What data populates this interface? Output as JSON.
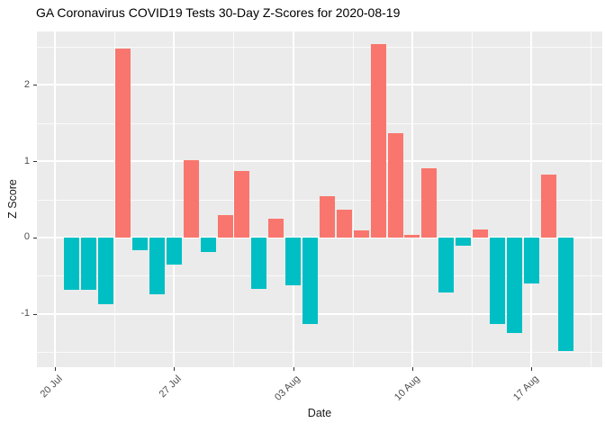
{
  "chart_data": {
    "type": "bar",
    "title": "GA Coronavirus COVID19 Tests 30-Day Z-Scores for 2020-08-19",
    "xlabel": "Date",
    "ylabel": "Z Score",
    "ylim": [
      -1.7,
      2.7
    ],
    "grid": true,
    "legend": false,
    "x_ticks": [
      {
        "label": "20 Jul",
        "date": "2020-07-20"
      },
      {
        "label": "27 Jul",
        "date": "2020-07-27"
      },
      {
        "label": "03 Aug",
        "date": "2020-08-03"
      },
      {
        "label": "10 Aug",
        "date": "2020-08-10"
      },
      {
        "label": "17 Aug",
        "date": "2020-08-17"
      }
    ],
    "y_ticks": [
      "2",
      "1",
      "0",
      "-1"
    ],
    "points": [
      {
        "date": "2020-07-21",
        "value": -0.69
      },
      {
        "date": "2020-07-22",
        "value": -0.69
      },
      {
        "date": "2020-07-23",
        "value": -0.87
      },
      {
        "date": "2020-07-24",
        "value": 2.48
      },
      {
        "date": "2020-07-25",
        "value": -0.17
      },
      {
        "date": "2020-07-26",
        "value": -0.74
      },
      {
        "date": "2020-07-27",
        "value": -0.35
      },
      {
        "date": "2020-07-28",
        "value": 1.01
      },
      {
        "date": "2020-07-29",
        "value": -0.19
      },
      {
        "date": "2020-07-30",
        "value": 0.29
      },
      {
        "date": "2020-07-31",
        "value": 0.87
      },
      {
        "date": "2020-08-01",
        "value": -0.67
      },
      {
        "date": "2020-08-02",
        "value": 0.25
      },
      {
        "date": "2020-08-03",
        "value": -0.63
      },
      {
        "date": "2020-08-04",
        "value": -1.14
      },
      {
        "date": "2020-08-05",
        "value": 0.54
      },
      {
        "date": "2020-08-06",
        "value": 0.37
      },
      {
        "date": "2020-08-07",
        "value": 0.09
      },
      {
        "date": "2020-08-08",
        "value": 2.54
      },
      {
        "date": "2020-08-09",
        "value": 1.37
      },
      {
        "date": "2020-08-10",
        "value": 0.03
      },
      {
        "date": "2020-08-11",
        "value": 0.91
      },
      {
        "date": "2020-08-12",
        "value": -0.72
      },
      {
        "date": "2020-08-13",
        "value": -0.11
      },
      {
        "date": "2020-08-14",
        "value": 0.1
      },
      {
        "date": "2020-08-15",
        "value": -1.14
      },
      {
        "date": "2020-08-16",
        "value": -1.25
      },
      {
        "date": "2020-08-17",
        "value": -0.6
      },
      {
        "date": "2020-08-18",
        "value": 0.82
      },
      {
        "date": "2020-08-19",
        "value": -1.49
      }
    ],
    "colors": {
      "positive_bar": "#F8766D",
      "negative_bar": "#00BFC4",
      "panel_background": "#EBEBEB",
      "gridline": "#FFFFFF",
      "tick_label": "#4d4d4d",
      "tick_mark": "#333333"
    }
  }
}
